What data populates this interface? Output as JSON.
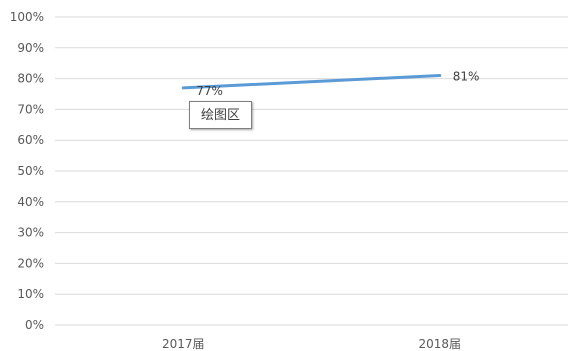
{
  "chart_data": {
    "type": "line",
    "categories": [
      "2017届",
      "2018届"
    ],
    "series": [
      {
        "values": [
          77,
          81
        ]
      }
    ],
    "data_labels": [
      "77%",
      "81%"
    ],
    "y_ticks": [
      "0%",
      "10%",
      "20%",
      "30%",
      "40%",
      "50%",
      "60%",
      "70%",
      "80%",
      "90%",
      "100%"
    ],
    "ylim": [
      0,
      100
    ],
    "grid": true,
    "colors": {
      "line": "#5b9bd5",
      "grid": "#d9d9d9"
    }
  },
  "tooltip": {
    "text": "绘图区"
  }
}
